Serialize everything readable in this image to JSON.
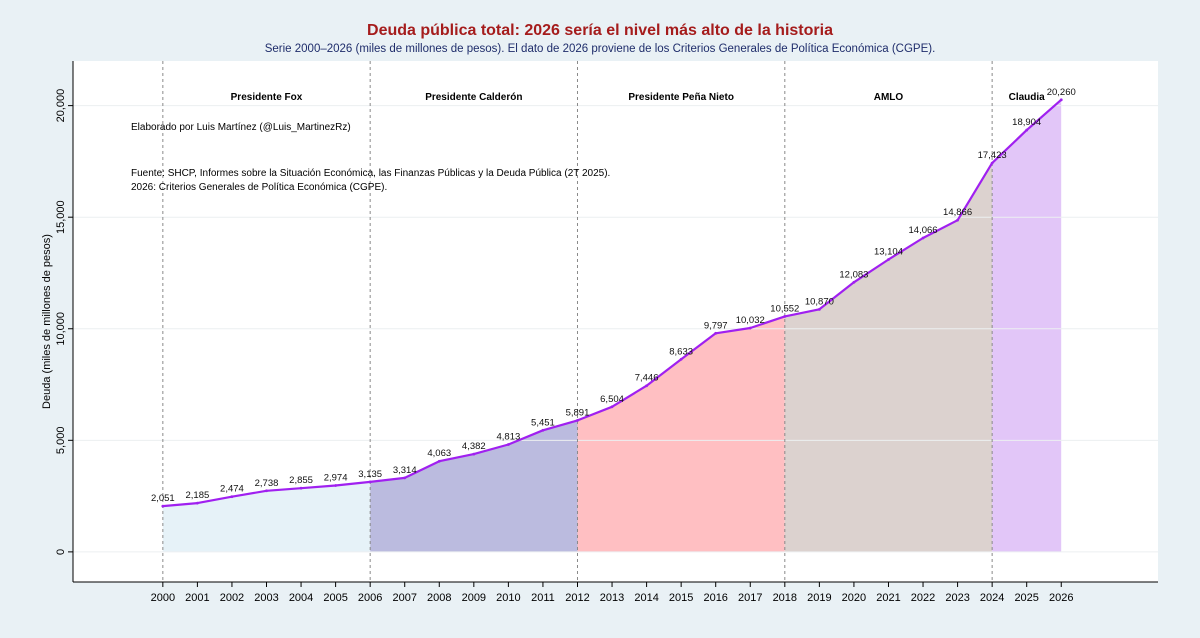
{
  "chart_data": {
    "type": "area",
    "title": "Deuda pública total: 2026 sería el nivel más alto de la historia",
    "subtitle": "Serie 2000–2026 (miles de millones de pesos). El dato de 2026 proviene de los Criterios Generales de Política Económica (CGPE).",
    "ylabel": "Deuda (miles de millones de pesos)",
    "xlabel": "",
    "ylim": [
      0,
      22000
    ],
    "yticks": [
      0,
      5000,
      10000,
      15000,
      20000
    ],
    "ytick_labels": [
      "0",
      "5,000",
      "10,000",
      "15,000",
      "20,000"
    ],
    "x": [
      2000,
      2001,
      2002,
      2003,
      2004,
      2005,
      2006,
      2007,
      2008,
      2009,
      2010,
      2011,
      2012,
      2013,
      2014,
      2015,
      2016,
      2017,
      2018,
      2019,
      2020,
      2021,
      2022,
      2023,
      2024,
      2025,
      2026
    ],
    "values": [
      2051,
      2185,
      2474,
      2738,
      2855,
      2974,
      3135,
      3314,
      4063,
      4382,
      4813,
      5451,
      5891,
      6504,
      7446,
      8633,
      9797,
      10032,
      10552,
      10870,
      12083,
      13104,
      14066,
      14866,
      17423,
      18904,
      20260
    ],
    "value_labels": [
      "2,051",
      "2,185",
      "2,474",
      "2,738",
      "2,855",
      "2,974",
      "3,135",
      "3,314",
      "4,063",
      "4,382",
      "4,813",
      "5,451",
      "5,891",
      "6,504",
      "7,446",
      "8,633",
      "9,797",
      "10,032",
      "10,552",
      "10,870",
      "12,083",
      "13,104",
      "14,066",
      "14,866",
      "17,423",
      "18,904",
      "20,260"
    ],
    "line_color": "#a020f0",
    "grid": true,
    "periods": [
      {
        "label": "Presidente Fox",
        "start": 2000,
        "end": 2006,
        "color": "#e6f2f8"
      },
      {
        "label": "Presidente Calderón",
        "start": 2006,
        "end": 2012,
        "color": "#bbbbdf"
      },
      {
        "label": "Presidente Peña Nieto",
        "start": 2012,
        "end": 2018,
        "color": "#ffbfc2"
      },
      {
        "label": "AMLO",
        "start": 2018,
        "end": 2024,
        "color": "#dcd2cf"
      },
      {
        "label": "Claudia",
        "start": 2024,
        "end": 2026,
        "color": "#e2c6f8"
      }
    ],
    "boundaries": [
      2000,
      2006,
      2012,
      2018,
      2024
    ],
    "annotations": [
      "Elaborado por Luis Martínez (@Luis_MartinezRz)",
      "Fuente: SHCP, Informes sobre la Situación Económica, las Finanzas Públicas y la Deuda Pública (2T 2025).",
      "2026: Criterios Generales de Política Económica (CGPE)."
    ]
  },
  "colors": {
    "title": "#a51c1c",
    "subtitle": "#1f2d6b",
    "page_bg": "#e9f1f5",
    "plot_bg": "#ffffff",
    "line": "#a020f0"
  }
}
